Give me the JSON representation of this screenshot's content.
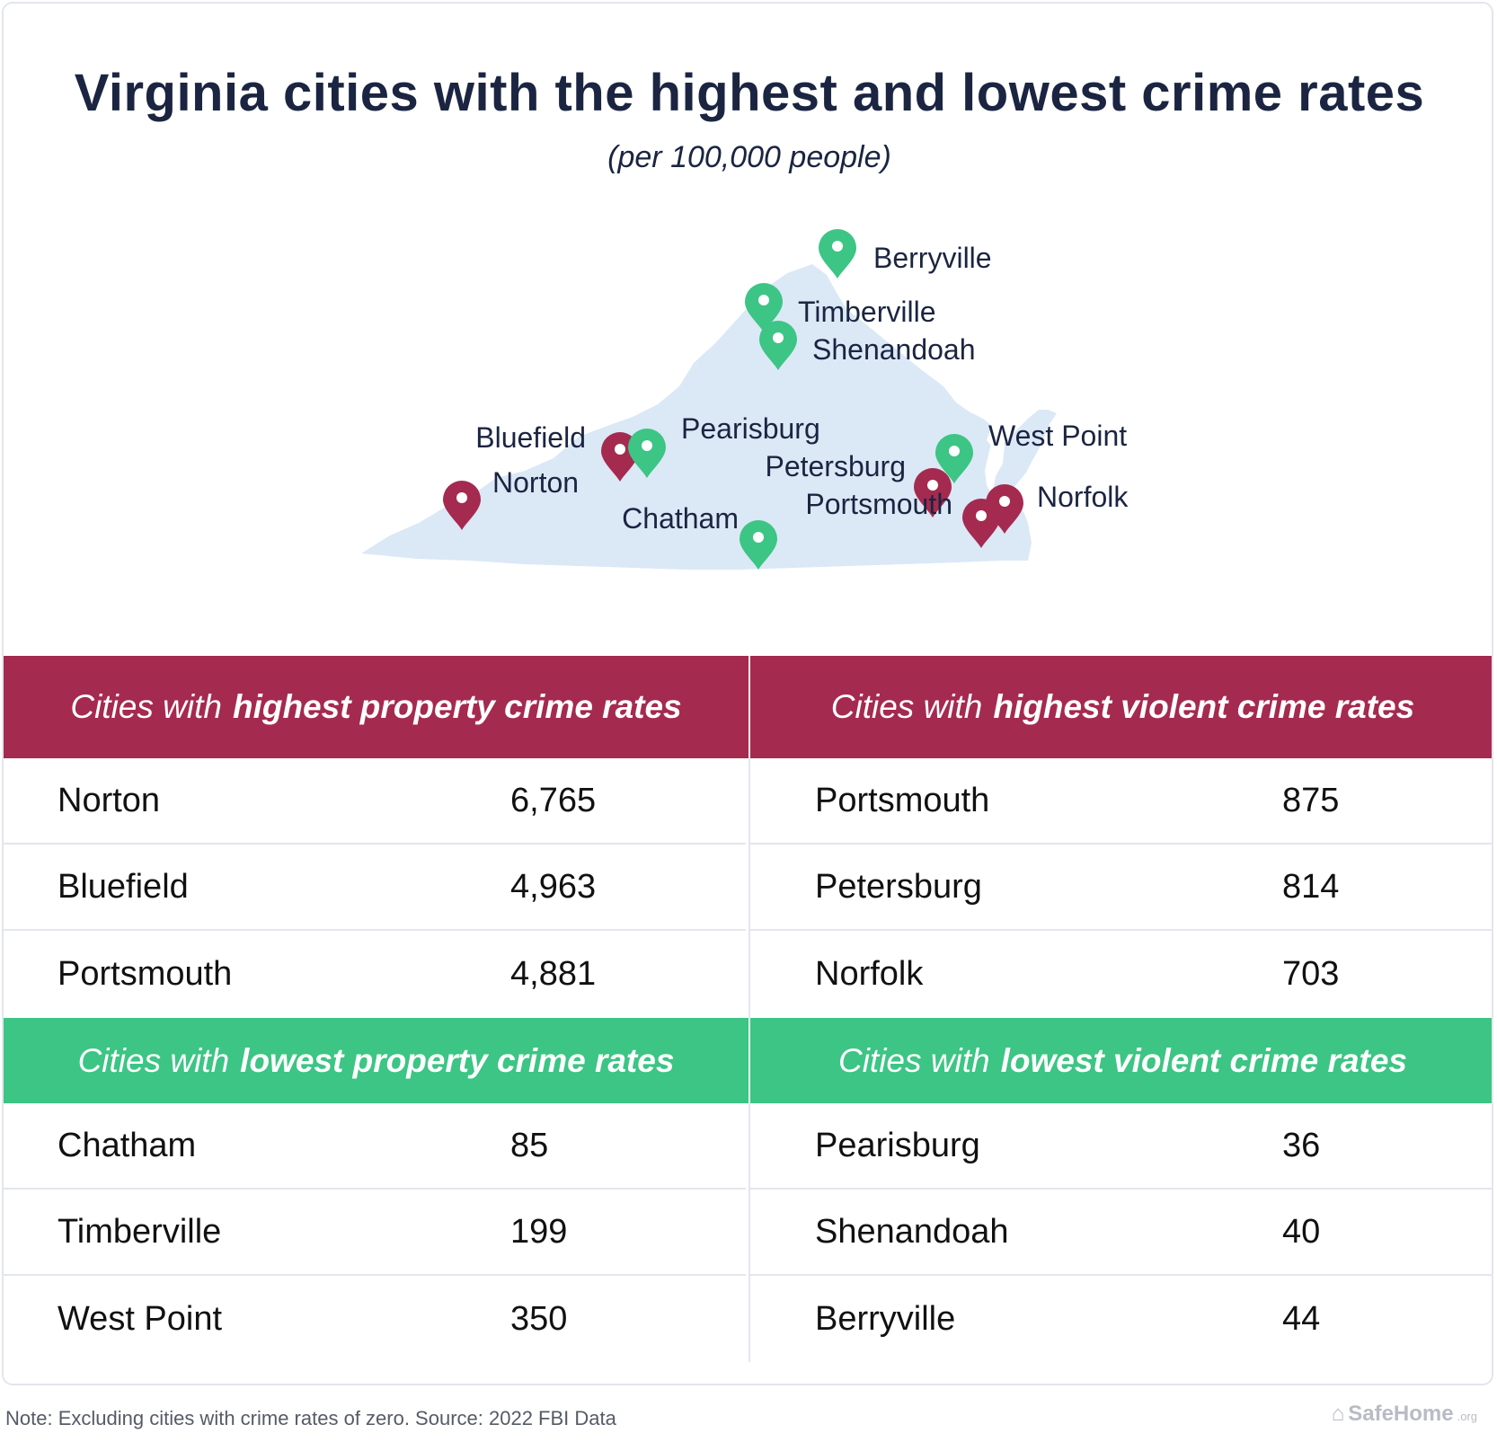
{
  "title": "Virginia cities with the highest and lowest crime rates",
  "subtitle": "(per 100,000 people)",
  "colors": {
    "high": "#a52a4f",
    "low": "#3cc584",
    "map_fill": "#dbe8f6",
    "text": "#1b2542"
  },
  "map": {
    "pins": [
      {
        "label": "Berryville",
        "group": "low",
        "icon": "map-pin-icon"
      },
      {
        "label": "Timberville",
        "group": "low",
        "icon": "map-pin-icon"
      },
      {
        "label": "Shenandoah",
        "group": "low",
        "icon": "map-pin-icon"
      },
      {
        "label": "Bluefield",
        "group": "high",
        "icon": "map-pin-icon"
      },
      {
        "label": "Pearisburg",
        "group": "low",
        "icon": "map-pin-icon"
      },
      {
        "label": "West Point",
        "group": "low",
        "icon": "map-pin-icon"
      },
      {
        "label": "Norton",
        "group": "high",
        "icon": "map-pin-icon"
      },
      {
        "label": "Petersburg",
        "group": "high",
        "icon": "map-pin-icon"
      },
      {
        "label": "Norfolk",
        "group": "high",
        "icon": "map-pin-icon"
      },
      {
        "label": "Portsmouth",
        "group": "high",
        "icon": "map-pin-icon"
      },
      {
        "label": "Chatham",
        "group": "low",
        "icon": "map-pin-icon"
      }
    ]
  },
  "tables": {
    "highest_property": {
      "header_pre": "Cities with",
      "header_em": "highest property crime rates",
      "rows": [
        {
          "city": "Norton",
          "value": "6,765"
        },
        {
          "city": "Bluefield",
          "value": "4,963"
        },
        {
          "city": "Portsmouth",
          "value": "4,881"
        }
      ]
    },
    "highest_violent": {
      "header_pre": "Cities with",
      "header_em": "highest violent crime rates",
      "rows": [
        {
          "city": "Portsmouth",
          "value": "875"
        },
        {
          "city": "Petersburg",
          "value": "814"
        },
        {
          "city": "Norfolk",
          "value": "703"
        }
      ]
    },
    "lowest_property": {
      "header_pre": "Cities with",
      "header_em": "lowest property crime rates",
      "rows": [
        {
          "city": "Chatham",
          "value": "85"
        },
        {
          "city": "Timberville",
          "value": "199"
        },
        {
          "city": "West Point",
          "value": "350"
        }
      ]
    },
    "lowest_violent": {
      "header_pre": "Cities with",
      "header_em": "lowest violent crime rates",
      "rows": [
        {
          "city": "Pearisburg",
          "value": "36"
        },
        {
          "city": "Shenandoah",
          "value": "40"
        },
        {
          "city": "Berryville",
          "value": "44"
        }
      ]
    }
  },
  "footnote": "Note: Excluding cities with crime rates of zero. Source: 2022 FBI Data",
  "brand": {
    "name": "SafeHome",
    "suffix": ".org",
    "icon": "house-icon"
  }
}
